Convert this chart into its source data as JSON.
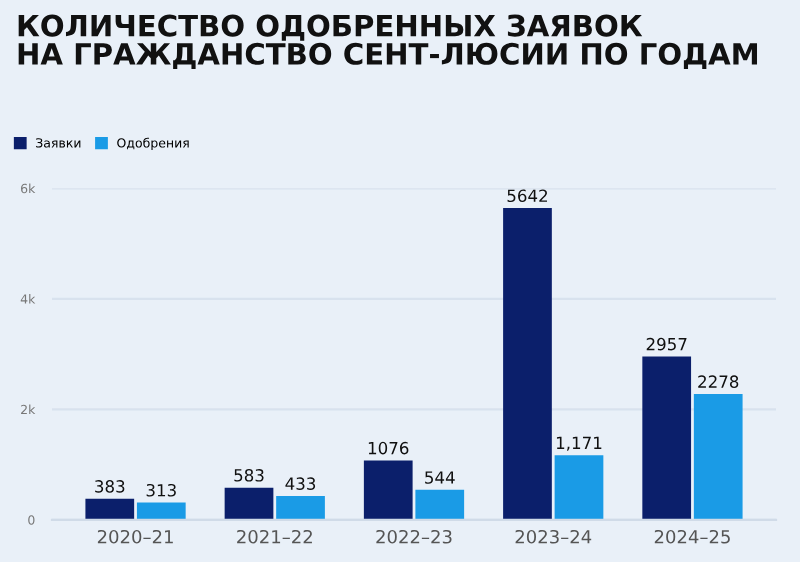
{
  "chart_data": {
    "type": "bar",
    "title": "КОЛИЧЕСТВО ОДОБРЕННЫХ ЗАЯВОК\nНА ГРАЖДАНСТВО СЕНТ-ЛЮСИИ ПО ГОДАМ",
    "categories": [
      "2020–21",
      "2021–22",
      "2022–23",
      "2023–24",
      "2024–25"
    ],
    "series": [
      {
        "name": "Заявки",
        "color": "#0b1f6b",
        "values": [
          383,
          583,
          1076,
          5642,
          2957
        ],
        "value_labels": [
          "383",
          "583",
          "1076",
          "5642",
          "2957"
        ]
      },
      {
        "name": "Одобрения",
        "color": "#1a9be6",
        "values": [
          313,
          433,
          544,
          1171,
          2278
        ],
        "value_labels": [
          "313",
          "433",
          "544",
          "1,171",
          "2278"
        ]
      }
    ],
    "ylim": [
      0,
      6000
    ],
    "yticks": [
      {
        "value": 0,
        "label": "0"
      },
      {
        "value": 2000,
        "label": "2k"
      },
      {
        "value": 4000,
        "label": "4k"
      },
      {
        "value": 6000,
        "label": "6k"
      }
    ],
    "grid": "y",
    "legend": "top left"
  }
}
